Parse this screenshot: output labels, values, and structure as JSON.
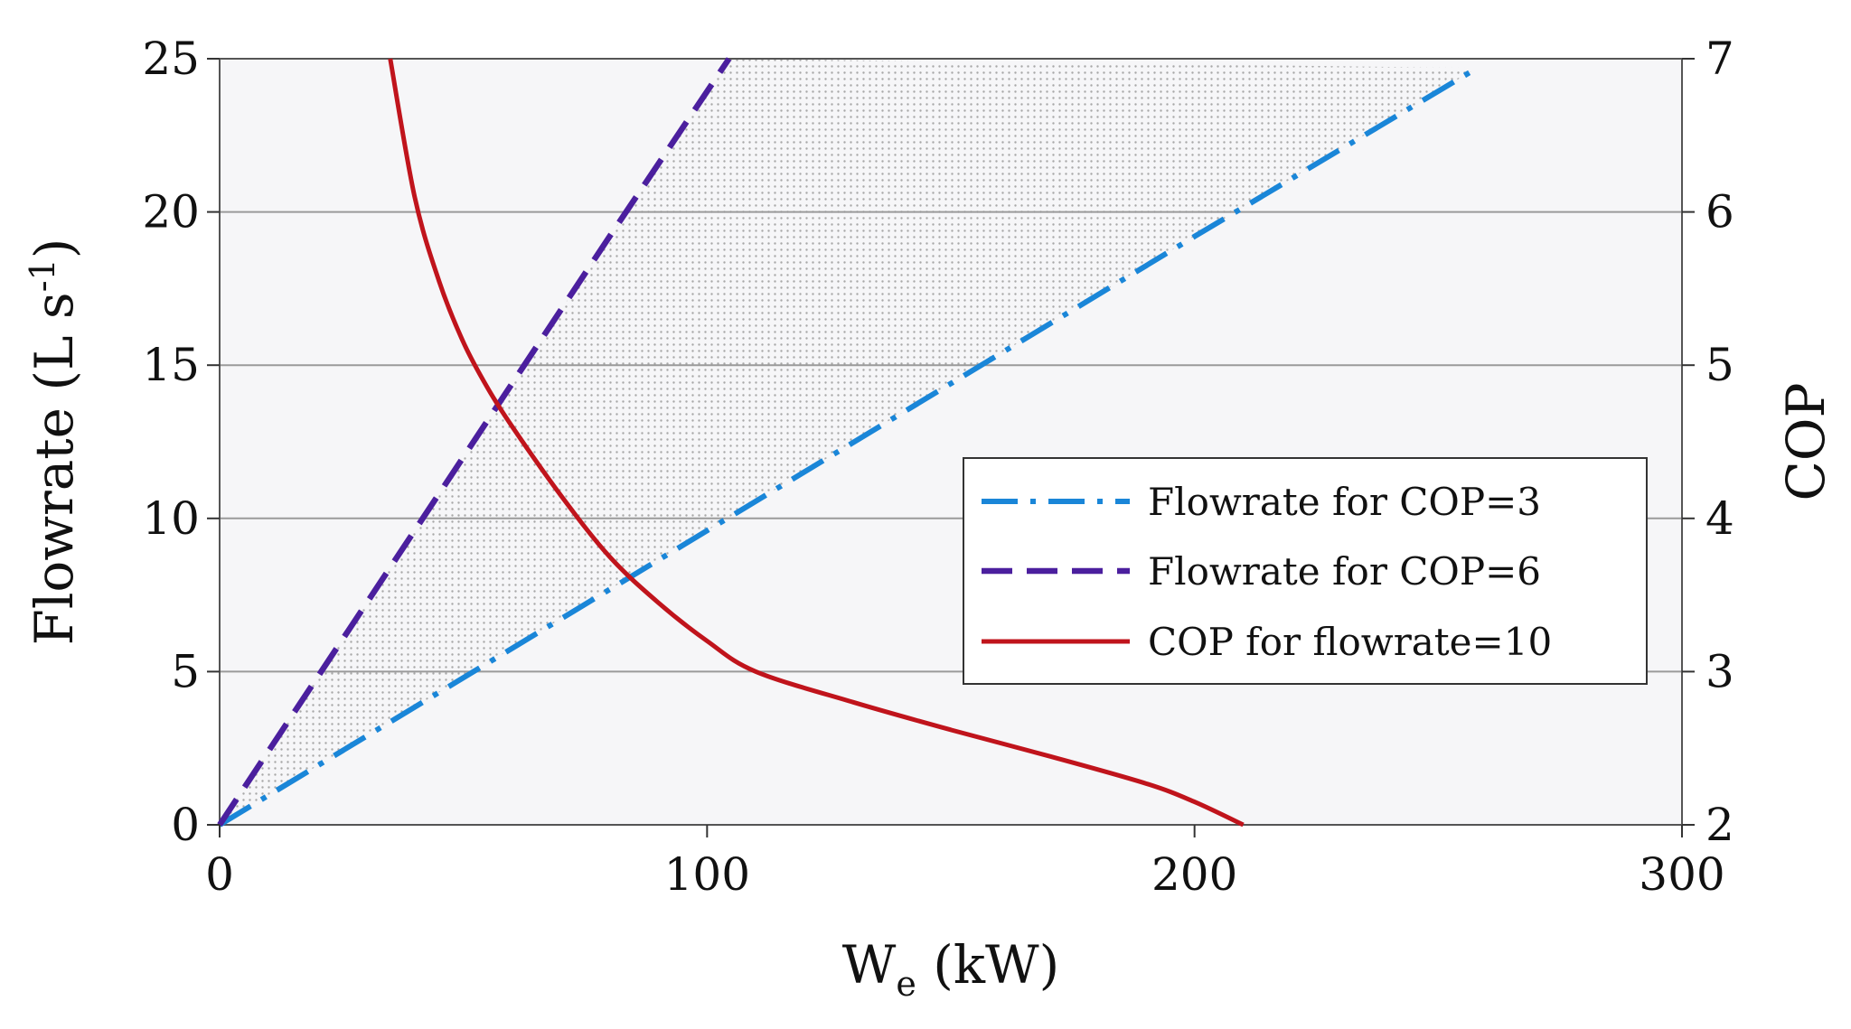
{
  "chart_data": {
    "type": "line",
    "title": "",
    "xlabel": "W",
    "xlabel_subscript": "e",
    "xlabel_units": " (kW)",
    "ylabel_left": "Flowrate (L s",
    "ylabel_left_superscript": "-1",
    "ylabel_left_close": ")",
    "ylabel_right": "COP",
    "xlim": [
      0,
      300
    ],
    "ylim_left": [
      0,
      25
    ],
    "ylim_right": [
      2,
      7
    ],
    "x_ticks": [
      "0",
      "100",
      "200",
      "300"
    ],
    "y_left_ticks": [
      "0",
      "5",
      "10",
      "15",
      "20",
      "25"
    ],
    "y_right_ticks": [
      "2",
      "3",
      "4",
      "5",
      "6",
      "7"
    ],
    "grid": "horizontal",
    "legend_position": "center-right",
    "shaded_region": "between Flowrate for COP=3 and Flowrate for COP=6",
    "series": [
      {
        "name": "Flowrate for COP=3",
        "axis": "left",
        "style": "dash-dot",
        "color": "#1a86d8",
        "x": [
          0,
          50,
          100,
          150,
          200,
          258
        ],
        "y": [
          0,
          4.8,
          9.6,
          14.4,
          19.2,
          24.7
        ]
      },
      {
        "name": "Flowrate for COP=6",
        "axis": "left",
        "style": "dashed",
        "color": "#4b1f9e",
        "x": [
          0,
          20,
          40,
          60,
          80,
          104.5
        ],
        "y": [
          0,
          4.8,
          9.6,
          14.4,
          19.2,
          25
        ]
      },
      {
        "name": "COP for flowrate=10",
        "axis": "right",
        "style": "solid",
        "color": "#c0141c",
        "x": [
          35,
          40,
          45,
          50,
          55,
          60,
          70,
          80,
          90,
          100,
          110,
          130,
          150,
          170,
          190,
          200,
          210
        ],
        "y": [
          7.0,
          6.1,
          5.55,
          5.15,
          4.85,
          4.6,
          4.15,
          3.75,
          3.45,
          3.2,
          3.0,
          2.8,
          2.62,
          2.45,
          2.27,
          2.15,
          2.0
        ]
      }
    ]
  }
}
